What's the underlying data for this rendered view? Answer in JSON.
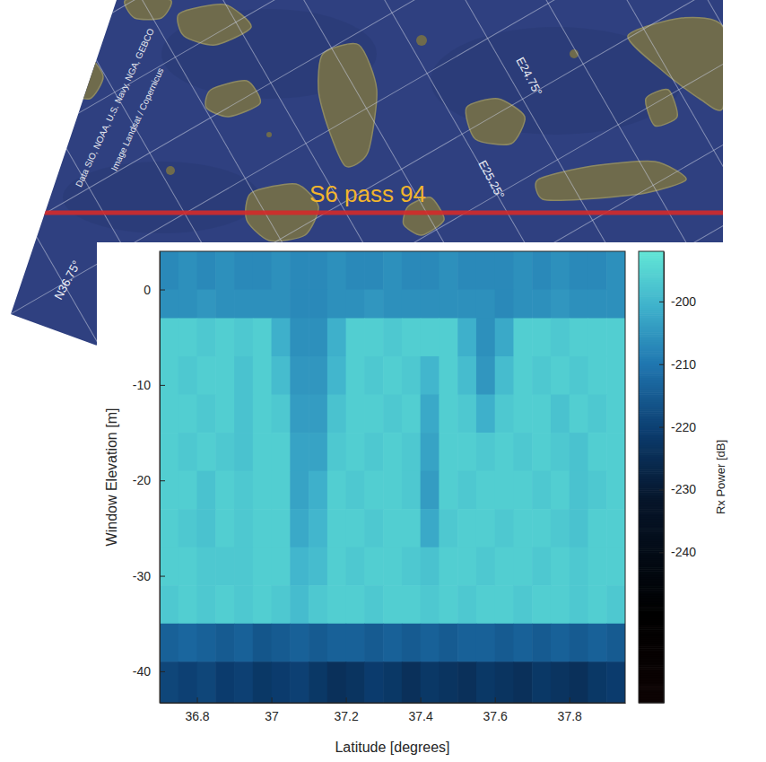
{
  "chart_data": {
    "type": "heatmap",
    "x_label": "Latitude [degrees]",
    "y_label": "Window Elevation [m]",
    "xlim": [
      36.7,
      37.95
    ],
    "ylim": [
      -43.3,
      4
    ],
    "xticks": [
      36.8,
      37,
      37.2,
      37.4,
      37.6,
      37.8
    ],
    "yticks": [
      -40,
      -30,
      -20,
      -10,
      0
    ],
    "x_edges": [
      36.7,
      36.75,
      36.8,
      36.85,
      36.9,
      36.95,
      37.0,
      37.05,
      37.1,
      37.15,
      37.2,
      37.25,
      37.3,
      37.35,
      37.4,
      37.45,
      37.5,
      37.55,
      37.6,
      37.65,
      37.7,
      37.75,
      37.8,
      37.85,
      37.9,
      37.95
    ],
    "y_edges": [
      4,
      0,
      -3,
      -7,
      -11,
      -15,
      -19,
      -23,
      -27,
      -31,
      -35,
      -39,
      -43.3
    ],
    "values": [
      [
        -207,
        -206,
        -207,
        -206,
        -207,
        -207,
        -206,
        -207,
        -207,
        -206,
        -207,
        -207,
        -206,
        -207,
        -207,
        -206,
        -207,
        -207,
        -207,
        -206,
        -207,
        -206,
        -207,
        -207,
        -206
      ],
      [
        -206,
        -206,
        -205,
        -206,
        -206,
        -206,
        -206,
        -207,
        -207,
        -206,
        -206,
        -205,
        -206,
        -206,
        -206,
        -206,
        -206,
        -206,
        -207,
        -206,
        -206,
        -205,
        -206,
        -206,
        -206
      ],
      [
        -196,
        -196,
        -197,
        -196,
        -197,
        -196,
        -201,
        -206,
        -206,
        -201,
        -196,
        -196,
        -197,
        -196,
        -196,
        -196,
        -201,
        -206,
        -202,
        -196,
        -196,
        -197,
        -196,
        -196,
        -196
      ],
      [
        -196,
        -197,
        -196,
        -196,
        -198,
        -196,
        -199,
        -205,
        -205,
        -200,
        -196,
        -197,
        -196,
        -197,
        -200,
        -196,
        -199,
        -205,
        -199,
        -196,
        -197,
        -196,
        -197,
        -196,
        -196
      ],
      [
        -196,
        -196,
        -197,
        -196,
        -198,
        -196,
        -197,
        -204,
        -204,
        -198,
        -196,
        -196,
        -197,
        -196,
        -202,
        -196,
        -197,
        -201,
        -197,
        -196,
        -196,
        -198,
        -196,
        -197,
        -196
      ],
      [
        -196,
        -197,
        -196,
        -197,
        -198,
        -196,
        -196,
        -203,
        -203,
        -197,
        -196,
        -197,
        -196,
        -197,
        -203,
        -196,
        -196,
        -197,
        -196,
        -197,
        -196,
        -197,
        -198,
        -196,
        -196
      ],
      [
        -196,
        -196,
        -198,
        -196,
        -197,
        -196,
        -196,
        -203,
        -201,
        -196,
        -197,
        -196,
        -196,
        -197,
        -204,
        -196,
        -197,
        -196,
        -196,
        -196,
        -197,
        -196,
        -198,
        -197,
        -196
      ],
      [
        -196,
        -197,
        -198,
        -196,
        -197,
        -196,
        -196,
        -202,
        -200,
        -196,
        -196,
        -197,
        -196,
        -196,
        -202,
        -197,
        -196,
        -196,
        -197,
        -196,
        -196,
        -197,
        -198,
        -196,
        -196
      ],
      [
        -196,
        -196,
        -197,
        -197,
        -197,
        -196,
        -196,
        -200,
        -199,
        -196,
        -197,
        -196,
        -196,
        -197,
        -198,
        -196,
        -196,
        -197,
        -196,
        -196,
        -197,
        -196,
        -197,
        -196,
        -196
      ],
      [
        -197,
        -196,
        -197,
        -196,
        -197,
        -196,
        -197,
        -199,
        -197,
        -196,
        -196,
        -197,
        -196,
        -196,
        -197,
        -196,
        -197,
        -196,
        -196,
        -197,
        -196,
        -196,
        -197,
        -196,
        -197
      ],
      [
        -214,
        -213,
        -214,
        -215,
        -214,
        -216,
        -215,
        -214,
        -215,
        -214,
        -214,
        -215,
        -214,
        -215,
        -214,
        -215,
        -214,
        -214,
        -215,
        -214,
        -215,
        -214,
        -215,
        -214,
        -215
      ],
      [
        -219,
        -220,
        -219,
        -221,
        -220,
        -222,
        -221,
        -220,
        -222,
        -224,
        -223,
        -221,
        -222,
        -224,
        -222,
        -223,
        -224,
        -222,
        -223,
        -224,
        -222,
        -223,
        -224,
        -222,
        -221
      ]
    ],
    "colorbar": {
      "label": "Rx Power [dB]",
      "range": [
        -264,
        -192
      ],
      "ticks": [
        -240,
        -230,
        -220,
        -210,
        -200
      ]
    }
  },
  "map": {
    "title": "S6 pass 94",
    "grid_labels": [
      "E24.75°",
      "E25.25°",
      "N36.75°"
    ],
    "attribution": [
      "Data SIO, NOAA, U.S. Navy, NGA, GEBCO",
      "Image Landsat / Copernicus"
    ]
  }
}
